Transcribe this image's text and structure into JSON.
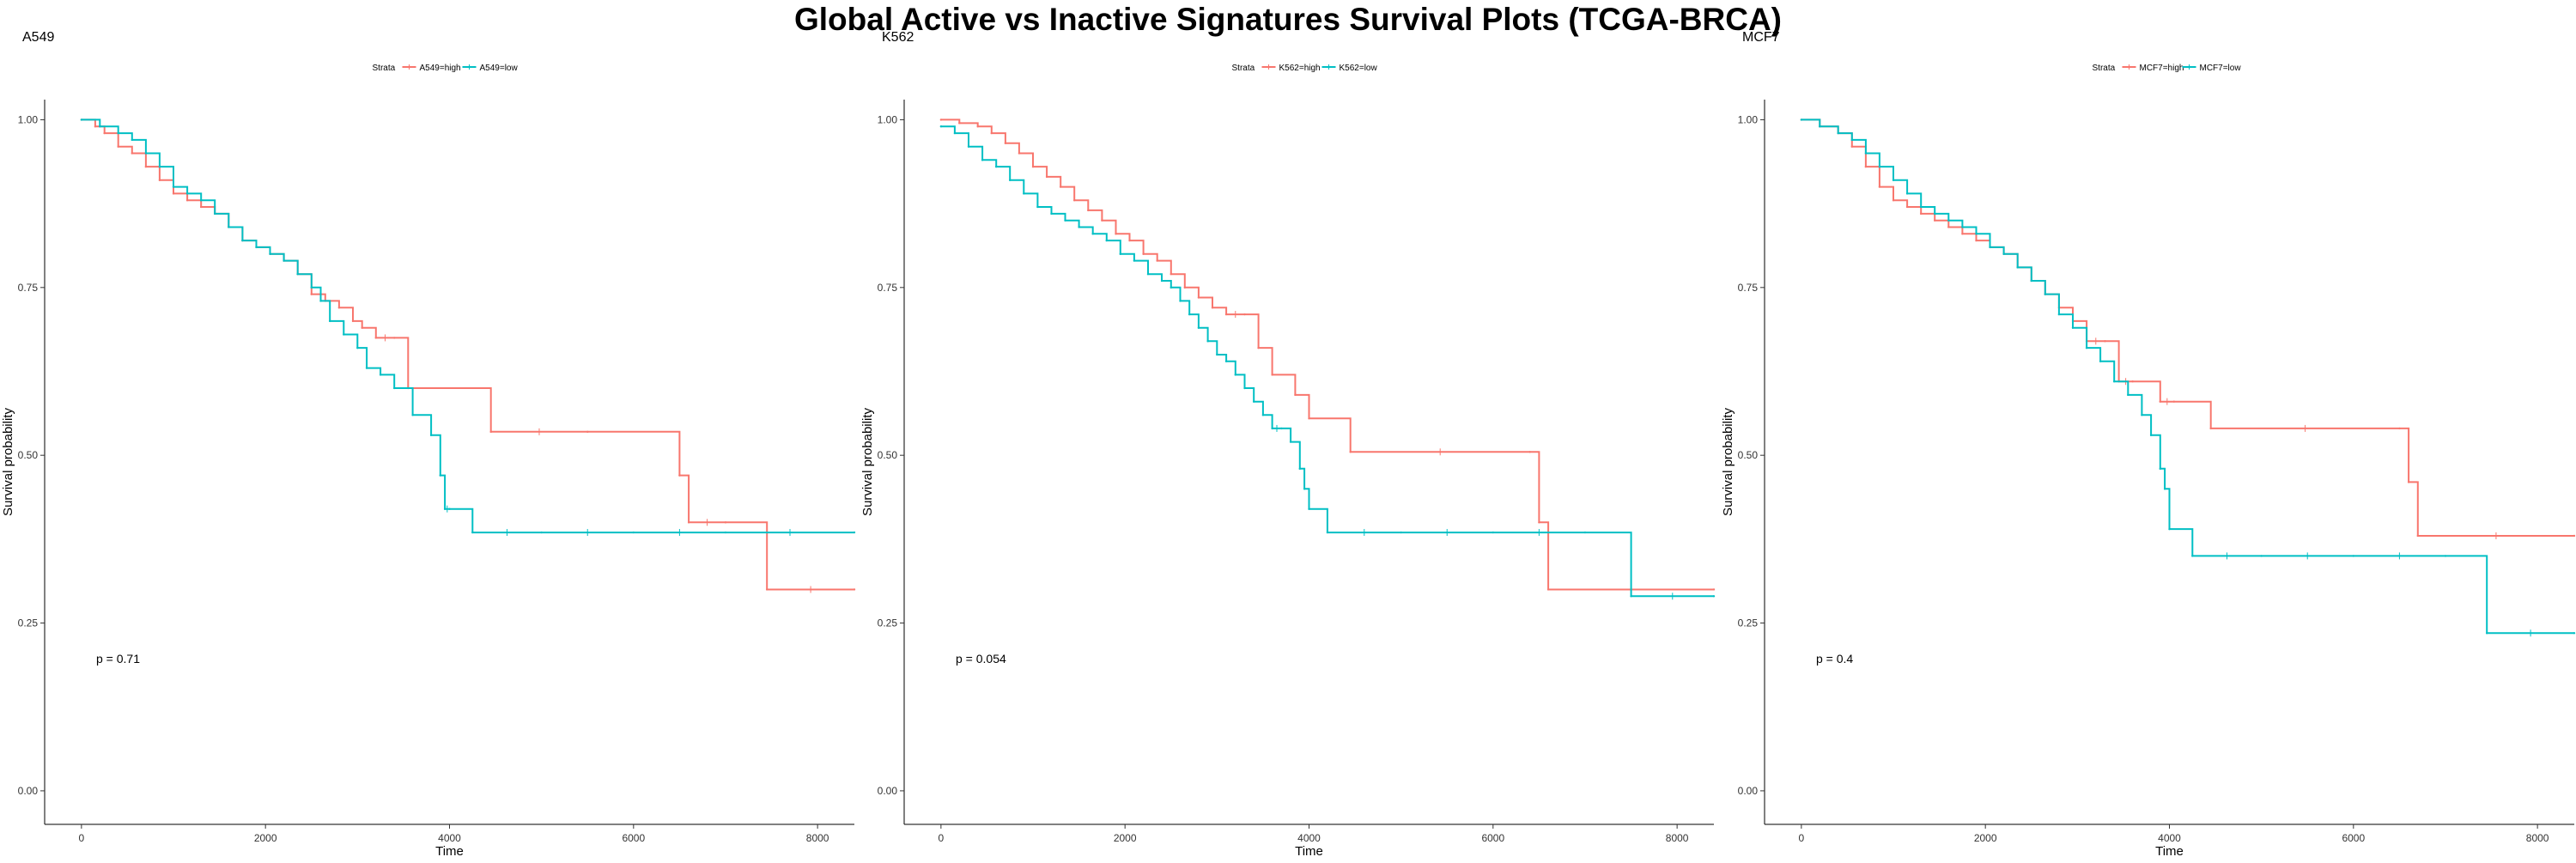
{
  "title": "Global Active vs Inactive Signatures Survival Plots (TCGA-BRCA)",
  "colors": {
    "high": "#F8766D",
    "low": "#00BFC4",
    "axis": "#000000"
  },
  "chart_data": [
    {
      "type": "line",
      "title": "A549",
      "xlabel": "Time",
      "ylabel": "Survival probability",
      "xlim": [
        -400,
        8400
      ],
      "ylim": [
        -0.05,
        1.03
      ],
      "xticks": [
        "0",
        "2000",
        "4000",
        "6000",
        "8000"
      ],
      "yticks": [
        "0.00",
        "0.25",
        "0.50",
        "0.75",
        "1.00"
      ],
      "legend": {
        "title": "Strata",
        "placement": "top-center"
      },
      "p_value": "p = 0.71",
      "series": [
        {
          "name": "A549=high",
          "color": "#F8766D",
          "x": [
            0,
            150,
            250,
            400,
            550,
            700,
            850,
            1000,
            1150,
            1300,
            1450,
            1600,
            1750,
            1900,
            2050,
            2200,
            2350,
            2500,
            2650,
            2800,
            2950,
            3050,
            3200,
            3400,
            3550,
            4450,
            5500,
            6500,
            6600,
            7000,
            7450,
            8400
          ],
          "y": [
            1.0,
            0.99,
            0.98,
            0.96,
            0.95,
            0.93,
            0.91,
            0.89,
            0.88,
            0.87,
            0.86,
            0.84,
            0.82,
            0.81,
            0.8,
            0.79,
            0.77,
            0.74,
            0.73,
            0.72,
            0.7,
            0.69,
            0.675,
            0.675,
            0.6,
            0.535,
            0.535,
            0.47,
            0.4,
            0.4,
            0.3,
            0.3
          ]
        },
        {
          "name": "A549=low",
          "color": "#00BFC4",
          "x": [
            0,
            200,
            400,
            550,
            700,
            850,
            1000,
            1150,
            1300,
            1450,
            1600,
            1750,
            1900,
            2050,
            2200,
            2350,
            2500,
            2600,
            2700,
            2850,
            3000,
            3100,
            3250,
            3400,
            3600,
            3800,
            3900,
            3950,
            4000,
            4250,
            5000,
            6000,
            7000,
            8400
          ],
          "y": [
            1.0,
            0.99,
            0.98,
            0.97,
            0.95,
            0.93,
            0.9,
            0.89,
            0.88,
            0.86,
            0.84,
            0.82,
            0.81,
            0.8,
            0.79,
            0.77,
            0.75,
            0.73,
            0.7,
            0.68,
            0.66,
            0.63,
            0.62,
            0.6,
            0.56,
            0.53,
            0.47,
            0.42,
            0.42,
            0.385,
            0.385,
            0.385,
            0.385,
            0.385
          ]
        }
      ]
    },
    {
      "type": "line",
      "title": "K562",
      "xlabel": "Time",
      "ylabel": "Survival probability",
      "xlim": [
        -400,
        8400
      ],
      "ylim": [
        -0.05,
        1.03
      ],
      "xticks": [
        "0",
        "2000",
        "4000",
        "6000",
        "8000"
      ],
      "yticks": [
        "0.00",
        "0.25",
        "0.50",
        "0.75",
        "1.00"
      ],
      "legend": {
        "title": "Strata",
        "placement": "top-center"
      },
      "p_value": "p = 0.054",
      "series": [
        {
          "name": "K562=high",
          "color": "#F8766D",
          "x": [
            0,
            200,
            400,
            550,
            700,
            850,
            1000,
            1150,
            1300,
            1450,
            1600,
            1750,
            1900,
            2050,
            2200,
            2350,
            2500,
            2650,
            2800,
            2950,
            3100,
            3300,
            3450,
            3600,
            3850,
            4000,
            4450,
            6400,
            6500,
            6600,
            8400
          ],
          "y": [
            1.0,
            0.995,
            0.99,
            0.98,
            0.965,
            0.95,
            0.93,
            0.915,
            0.9,
            0.88,
            0.865,
            0.85,
            0.83,
            0.82,
            0.8,
            0.79,
            0.77,
            0.75,
            0.735,
            0.72,
            0.71,
            0.71,
            0.66,
            0.62,
            0.59,
            0.555,
            0.505,
            0.505,
            0.4,
            0.3,
            0.3
          ]
        },
        {
          "name": "K562=low",
          "color": "#00BFC4",
          "x": [
            0,
            150,
            300,
            450,
            600,
            750,
            900,
            1050,
            1200,
            1350,
            1500,
            1650,
            1800,
            1950,
            2100,
            2250,
            2400,
            2500,
            2600,
            2700,
            2800,
            2900,
            3000,
            3100,
            3200,
            3300,
            3400,
            3500,
            3600,
            3700,
            3800,
            3900,
            3950,
            4000,
            4200,
            5000,
            6000,
            7000,
            7500,
            8400
          ],
          "y": [
            0.99,
            0.98,
            0.96,
            0.94,
            0.93,
            0.91,
            0.89,
            0.87,
            0.86,
            0.85,
            0.84,
            0.83,
            0.82,
            0.8,
            0.79,
            0.77,
            0.76,
            0.75,
            0.73,
            0.71,
            0.69,
            0.67,
            0.65,
            0.64,
            0.62,
            0.6,
            0.58,
            0.56,
            0.54,
            0.54,
            0.52,
            0.48,
            0.45,
            0.42,
            0.385,
            0.385,
            0.385,
            0.385,
            0.29,
            0.29
          ]
        }
      ]
    },
    {
      "type": "line",
      "title": "MCF7",
      "xlabel": "Time",
      "ylabel": "Survival probability",
      "xlim": [
        -400,
        8400
      ],
      "ylim": [
        -0.05,
        1.03
      ],
      "xticks": [
        "0",
        "2000",
        "4000",
        "6000",
        "8000"
      ],
      "yticks": [
        "0.00",
        "0.25",
        "0.50",
        "0.75",
        "1.00"
      ],
      "legend": {
        "title": "Strata",
        "placement": "top-center"
      },
      "p_value": "p = 0.4",
      "series": [
        {
          "name": "MCF7=high",
          "color": "#F8766D",
          "x": [
            0,
            200,
            400,
            550,
            700,
            850,
            1000,
            1150,
            1300,
            1450,
            1600,
            1750,
            1900,
            2050,
            2200,
            2350,
            2500,
            2650,
            2800,
            2950,
            3100,
            3300,
            3450,
            3600,
            3900,
            4050,
            4450,
            6500,
            6600,
            6700,
            8400
          ],
          "y": [
            1.0,
            0.99,
            0.98,
            0.96,
            0.93,
            0.9,
            0.88,
            0.87,
            0.86,
            0.85,
            0.84,
            0.83,
            0.82,
            0.81,
            0.8,
            0.78,
            0.76,
            0.74,
            0.72,
            0.7,
            0.67,
            0.67,
            0.61,
            0.61,
            0.58,
            0.58,
            0.54,
            0.54,
            0.46,
            0.38,
            0.38
          ]
        },
        {
          "name": "MCF7=low",
          "color": "#00BFC4",
          "x": [
            0,
            200,
            400,
            550,
            700,
            850,
            1000,
            1150,
            1300,
            1450,
            1600,
            1750,
            1900,
            2050,
            2200,
            2350,
            2500,
            2650,
            2800,
            2950,
            3100,
            3250,
            3400,
            3550,
            3700,
            3800,
            3900,
            3950,
            4000,
            4250,
            5000,
            6000,
            7000,
            7450,
            8400
          ],
          "y": [
            1.0,
            0.99,
            0.98,
            0.97,
            0.95,
            0.93,
            0.91,
            0.89,
            0.87,
            0.86,
            0.85,
            0.84,
            0.83,
            0.81,
            0.8,
            0.78,
            0.76,
            0.74,
            0.71,
            0.69,
            0.66,
            0.64,
            0.61,
            0.59,
            0.56,
            0.53,
            0.48,
            0.45,
            0.39,
            0.35,
            0.35,
            0.35,
            0.35,
            0.235,
            0.235
          ]
        }
      ]
    }
  ]
}
